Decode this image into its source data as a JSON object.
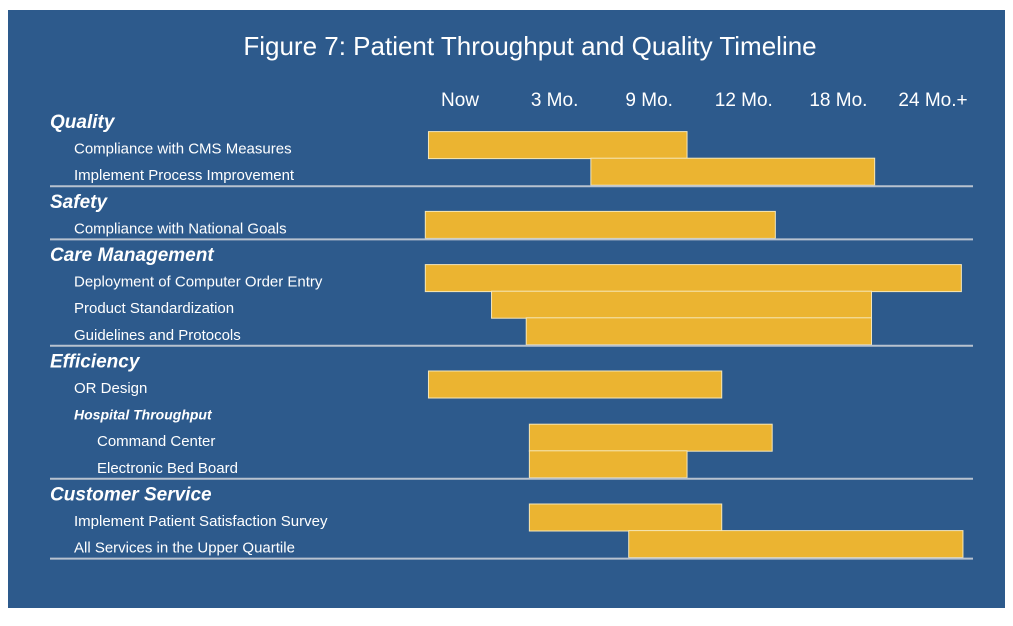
{
  "chart_data": {
    "type": "gantt",
    "title": "Figure 7: Patient Throughput and Quality Timeline",
    "xticks": [
      {
        "value": 0,
        "label": "Now"
      },
      {
        "value": 3,
        "label": "3 Mo."
      },
      {
        "value": 9,
        "label": "9 Mo."
      },
      {
        "value": 12,
        "label": "12 Mo."
      },
      {
        "value": 18,
        "label": "18 Mo."
      },
      {
        "value": 24,
        "label": "24 Mo.+"
      }
    ],
    "color": "#ebb431",
    "groups": [
      {
        "name": "Quality",
        "tasks": [
          {
            "name": "Compliance with CMS Measures",
            "start": -1,
            "end": 10.2
          },
          {
            "name": "Implement Process Improvement",
            "start": 5.3,
            "end": 20.3
          }
        ]
      },
      {
        "name": "Safety",
        "tasks": [
          {
            "name": "Compliance with National Goals",
            "start": -1.1,
            "end": 14
          }
        ]
      },
      {
        "name": "Care Management",
        "tasks": [
          {
            "name": "Deployment of Computer Order Entry",
            "start": -1.1,
            "end": 25.8
          },
          {
            "name": "Product Standardization",
            "start": 1,
            "end": 20.1
          },
          {
            "name": "Guidelines and Protocols",
            "start": 2.1,
            "end": 20.1
          }
        ]
      },
      {
        "name": "Efficiency",
        "tasks": [
          {
            "name": "OR Design",
            "start": -1,
            "end": 11.3
          },
          {
            "name": "Hospital Throughput",
            "tasks": [
              {
                "name": "Command Center",
                "start": 2.2,
                "end": 13.8
              },
              {
                "name": "Electronic Bed Board",
                "start": 2.2,
                "end": 10.2
              }
            ]
          }
        ]
      },
      {
        "name": "Customer Service",
        "tasks": [
          {
            "name": "Implement Patient Satisfaction Survey",
            "start": 2.2,
            "end": 11.3
          },
          {
            "name": "All Services in the Upper Quartile",
            "start": 7.7,
            "end": 25.9
          }
        ]
      }
    ]
  }
}
